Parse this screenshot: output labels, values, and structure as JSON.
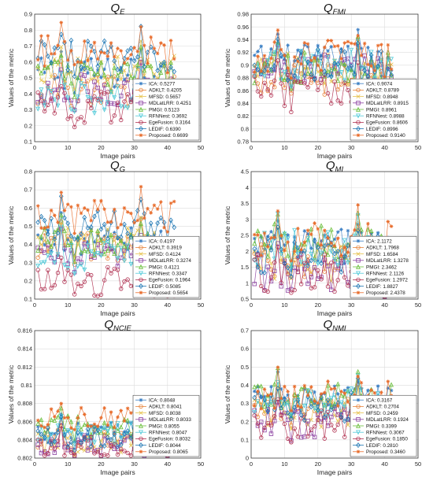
{
  "figure": {
    "colors": [
      "#3b7fc4",
      "#e8833a",
      "#e6c24d",
      "#8a3fa0",
      "#6abf3b",
      "#4fc9d8",
      "#b03050",
      "#1f77b4",
      "#e86b2a"
    ],
    "markers": [
      "star",
      "circle",
      "x",
      "square",
      "triangle",
      "tri",
      "circle",
      "diamond",
      "star"
    ]
  },
  "chart_data": [
    {
      "type": "line",
      "title_base": "Q",
      "title_sub": "E",
      "xlabel": "Image pairs",
      "ylabel": "Values of the metric",
      "xlim": [
        0,
        50
      ],
      "ylim": [
        0.1,
        0.9
      ],
      "xticks": [
        "0",
        "10",
        "20",
        "30",
        "40",
        "50"
      ],
      "yticks": [
        "0.1",
        "0.2",
        "0.3",
        "0.4",
        "0.5",
        "0.6",
        "0.7",
        "0.8",
        "0.9"
      ],
      "legend": [
        "ICA: 0.5277",
        "ADKLT: 0.4205",
        "MFSD: 0.5657",
        "MDLatLRR: 0.4251",
        "PMGI: 0.5123",
        "RFNNest: 0.3692",
        "EgeFusion: 0.3164",
        "LEDIF: 0.6390",
        "Proposed: 0.6699"
      ],
      "series_means": [
        0.5277,
        0.4205,
        0.5657,
        0.4251,
        0.5123,
        0.3692,
        0.3164,
        0.639,
        0.6699
      ],
      "spread": 0.1
    },
    {
      "type": "line",
      "title_base": "Q",
      "title_sub": "FMI",
      "xlabel": "Image pairs",
      "ylabel": "Values of the metric",
      "xlim": [
        0,
        50
      ],
      "ylim": [
        0.78,
        0.98
      ],
      "xticks": [
        "0",
        "10",
        "20",
        "30",
        "40",
        "50"
      ],
      "yticks": [
        "0.78",
        "0.8",
        "0.82",
        "0.84",
        "0.86",
        "0.88",
        "0.9",
        "0.92",
        "0.94",
        "0.96",
        "0.98"
      ],
      "legend": [
        "ICA: 0.9074",
        "ADKLT: 0.8789",
        "MFSD: 0.8948",
        "MDLatLRR: 0.8915",
        "PMGI: 0.8961",
        "RFNNest: 0.8988",
        "EgeFusion: 0.8606",
        "LEDIF: 0.8996",
        "Proposed: 0.9140"
      ],
      "series_means": [
        0.9074,
        0.8789,
        0.8948,
        0.8915,
        0.8961,
        0.8988,
        0.8606,
        0.8996,
        0.914
      ],
      "spread": 0.025
    },
    {
      "type": "line",
      "title_base": "Q",
      "title_sub": "G",
      "xlabel": "Image pairs",
      "ylabel": "Values of the metric",
      "xlim": [
        0,
        50
      ],
      "ylim": [
        0.1,
        0.8
      ],
      "xticks": [
        "0",
        "10",
        "20",
        "30",
        "40",
        "50"
      ],
      "yticks": [
        "0.1",
        "0.2",
        "0.3",
        "0.4",
        "0.5",
        "0.6",
        "0.7",
        "0.8"
      ],
      "legend": [
        "ICA: 0.4197",
        "ADKLT: 0.3919",
        "MFSD: 0.4124",
        "MDLatLRR: 0.3274",
        "PMGI: 0.4121",
        "RFNNest: 0.3347",
        "EgeFusion: 0.1964",
        "LEDIF: 0.5085",
        "Proposed: 0.5654"
      ],
      "series_means": [
        0.4197,
        0.3919,
        0.4124,
        0.3274,
        0.4121,
        0.3347,
        0.1964,
        0.5085,
        0.5654
      ],
      "spread": 0.08
    },
    {
      "type": "line",
      "title_base": "Q",
      "title_sub": "MI",
      "xlabel": "Image pairs",
      "ylabel": "Values of the metric",
      "xlim": [
        0,
        50
      ],
      "ylim": [
        0.5,
        4.5
      ],
      "xticks": [
        "0",
        "10",
        "20",
        "30",
        "40",
        "50"
      ],
      "yticks": [
        "0.5",
        "1",
        "1.5",
        "2",
        "2.5",
        "3",
        "3.5",
        "4",
        "4.5"
      ],
      "legend": [
        "ICA: 2.1172",
        "ADKLT: 1.7968",
        "MFSD: 1.6584",
        "MDLatLRR: 1.3278",
        "PMGI: 2.3462",
        "RFNNest: 2.1126",
        "EgeFusion: 1.2972",
        "LEDIF: 1.8827",
        "Proposed: 2.4378"
      ],
      "series_means": [
        2.1172,
        1.7968,
        1.6584,
        1.3278,
        2.3462,
        2.1126,
        1.2972,
        1.8827,
        2.4378
      ],
      "spread": 0.6
    },
    {
      "type": "line",
      "title_base": "Q",
      "title_sub": "NCIE",
      "xlabel": "Image pairs",
      "ylabel": "Values of the metric",
      "xlim": [
        0,
        50
      ],
      "ylim": [
        0.802,
        0.816
      ],
      "xticks": [
        "0",
        "10",
        "20",
        "30",
        "40",
        "50"
      ],
      "yticks": [
        "0.802",
        "0.804",
        "0.806",
        "0.808",
        "0.81",
        "0.812",
        "0.814",
        "0.816"
      ],
      "legend": [
        "ICA: 0.8048",
        "ADKLT: 0.8041",
        "MFSD: 0.8038",
        "MDLatLRR: 0.8033",
        "PMGI: 0.8055",
        "RFNNest: 0.8047",
        "EgeFusion: 0.8032",
        "LEDIF: 0.8044",
        "Proposed: 0.8065"
      ],
      "series_means": [
        0.8048,
        0.8041,
        0.8038,
        0.8033,
        0.8055,
        0.8047,
        0.8032,
        0.8044,
        0.8065
      ],
      "spread": 0.0012
    },
    {
      "type": "line",
      "title_base": "Q",
      "title_sub": "NMI",
      "xlabel": "Image pairs",
      "ylabel": "Values of the metric",
      "xlim": [
        0,
        50
      ],
      "ylim": [
        0,
        0.7
      ],
      "xticks": [
        "0",
        "10",
        "20",
        "30",
        "40",
        "50"
      ],
      "yticks": [
        "0",
        "0.1",
        "0.2",
        "0.3",
        "0.4",
        "0.5",
        "0.6",
        "0.7"
      ],
      "legend": [
        "ICA: 0.3167",
        "ADKLT: 0.2704",
        "MFSD: 0.2459",
        "MDLatLRR: 0.1924",
        "PMGI: 0.3399",
        "RFNNest: 0.3067",
        "EgeFusion: 0.1850",
        "LEDIF: 0.2810",
        "Proposed: 0.3460"
      ],
      "series_means": [
        0.3167,
        0.2704,
        0.2459,
        0.1924,
        0.3399,
        0.3067,
        0.185,
        0.281,
        0.346
      ],
      "spread": 0.08
    }
  ]
}
